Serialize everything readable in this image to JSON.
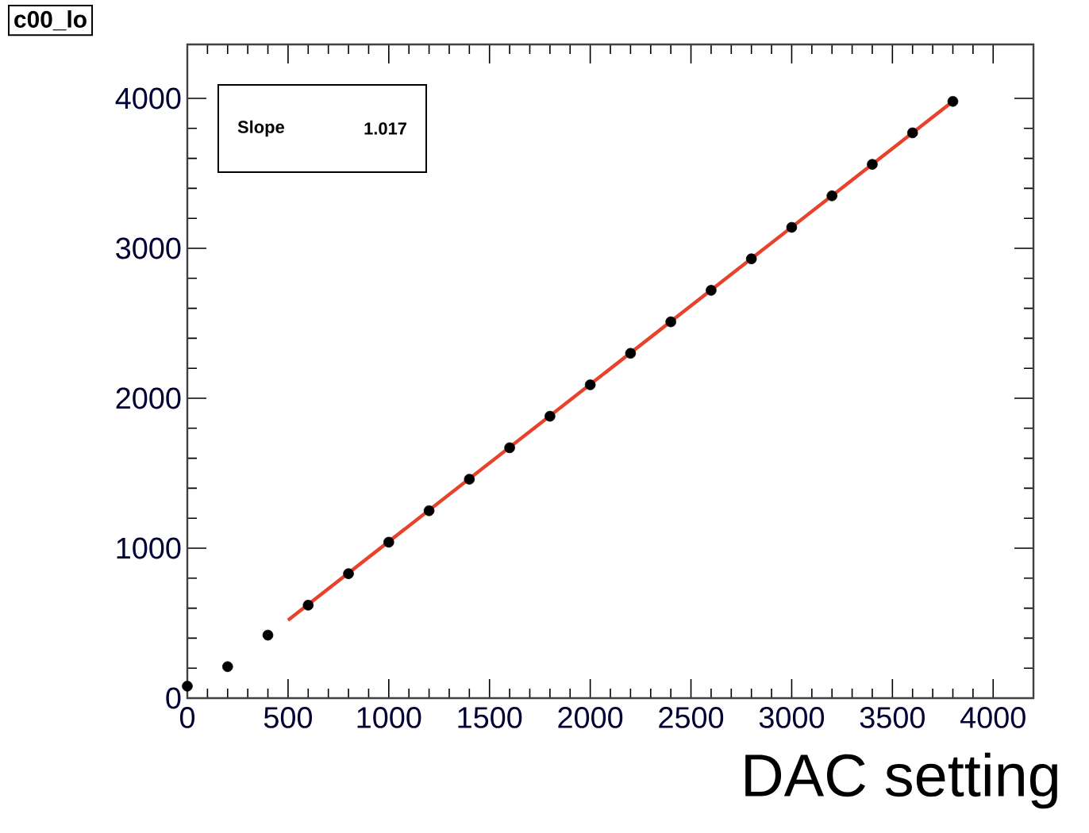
{
  "chart_data": {
    "type": "scatter",
    "title": "c00_lo",
    "xlabel": "DAC setting",
    "annotations": [
      "Slope",
      "1.017"
    ],
    "series": [
      {
        "color": "#000000",
        "marker": "circle",
        "x": [
          0,
          200,
          400,
          600,
          800,
          1000,
          1200,
          1400,
          1600,
          1800,
          2000,
          2200,
          2400,
          2600,
          2800,
          3000,
          3200,
          3400,
          3600,
          3800
        ],
        "values": [
          80,
          210,
          420,
          620,
          830,
          1040,
          1250,
          1460,
          1670,
          1880,
          2090,
          2300,
          2510,
          2720,
          2930,
          3140,
          3350,
          3560,
          3770,
          3980
        ]
      },
      {
        "type": "line",
        "color": "#e8412c",
        "marker": "none",
        "line_style": "solid",
        "x": [
          500,
          3800
        ],
        "values": [
          520,
          3980
        ]
      }
    ],
    "xlim": [
      0,
      4200
    ],
    "ylim": [
      0,
      4360
    ],
    "xticks": [
      0,
      500,
      1000,
      1500,
      2000,
      2500,
      3000,
      3500,
      4000
    ],
    "yticks": [
      0,
      1000,
      2000,
      3000,
      4000
    ]
  }
}
